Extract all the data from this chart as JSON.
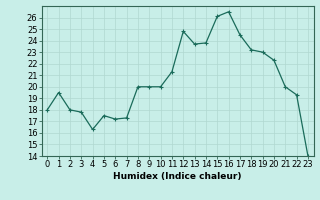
{
  "x": [
    0,
    1,
    2,
    3,
    4,
    5,
    6,
    7,
    8,
    9,
    10,
    11,
    12,
    13,
    14,
    15,
    16,
    17,
    18,
    19,
    20,
    21,
    22,
    23
  ],
  "y": [
    18,
    19.5,
    18,
    17.8,
    16.3,
    17.5,
    17.2,
    17.3,
    20,
    20,
    20,
    21.3,
    24.8,
    23.7,
    23.8,
    26.1,
    26.5,
    24.5,
    23.2,
    23,
    22.3,
    20,
    19.3,
    14
  ],
  "line_color": "#1a6b5a",
  "marker_color": "#1a6b5a",
  "bg_color": "#c8eee8",
  "grid_color": "#b0d8d0",
  "xlabel": "Humidex (Indice chaleur)",
  "ylim": [
    14,
    27
  ],
  "xlim": [
    -0.5,
    23.5
  ],
  "yticks": [
    14,
    15,
    16,
    17,
    18,
    19,
    20,
    21,
    22,
    23,
    24,
    25,
    26
  ],
  "xticks": [
    0,
    1,
    2,
    3,
    4,
    5,
    6,
    7,
    8,
    9,
    10,
    11,
    12,
    13,
    14,
    15,
    16,
    17,
    18,
    19,
    20,
    21,
    22,
    23
  ],
  "label_fontsize": 6.5,
  "tick_fontsize": 6
}
